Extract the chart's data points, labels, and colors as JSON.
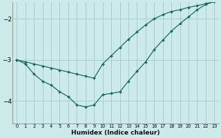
{
  "xlabel": "Humidex (Indice chaleur)",
  "bg_color": "#cceaea",
  "grid_color": "#aacccc",
  "line_color": "#1a6b5a",
  "xlim": [
    -0.5,
    23.5
  ],
  "ylim": [
    -4.55,
    -1.6
  ],
  "yticks": [
    -4,
    -3,
    -2
  ],
  "xticks": [
    0,
    1,
    2,
    3,
    4,
    5,
    6,
    7,
    8,
    9,
    10,
    11,
    12,
    13,
    14,
    15,
    16,
    17,
    18,
    19,
    20,
    21,
    22,
    23
  ],
  "line1_x": [
    0,
    1,
    2,
    3,
    4,
    5,
    6,
    7,
    8,
    9,
    10,
    11,
    12,
    13,
    14,
    15,
    16,
    17,
    18,
    19,
    20,
    21,
    22,
    23
  ],
  "line1_y": [
    -3.0,
    -3.05,
    -3.1,
    -3.15,
    -3.2,
    -3.25,
    -3.3,
    -3.35,
    -3.4,
    -3.45,
    -3.1,
    -2.9,
    -2.7,
    -2.5,
    -2.32,
    -2.15,
    -2.0,
    -1.9,
    -1.82,
    -1.78,
    -1.72,
    -1.68,
    -1.63,
    -1.58
  ],
  "line2_x": [
    0,
    1,
    2,
    3,
    4,
    5,
    6,
    7,
    8,
    9,
    10,
    11,
    12,
    13,
    14,
    15,
    16,
    17,
    18,
    19,
    20,
    21,
    22,
    23
  ],
  "line2_y": [
    -3.0,
    -3.1,
    -3.35,
    -3.52,
    -3.62,
    -3.78,
    -3.9,
    -4.1,
    -4.15,
    -4.1,
    -3.85,
    -3.82,
    -3.78,
    -3.52,
    -3.28,
    -3.05,
    -2.75,
    -2.52,
    -2.3,
    -2.12,
    -1.95,
    -1.78,
    -1.65,
    -1.58
  ]
}
